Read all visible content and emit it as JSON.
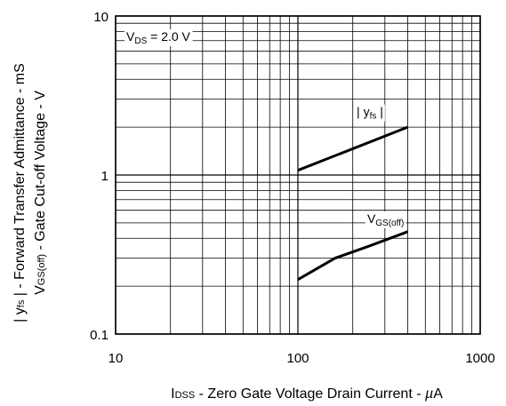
{
  "chart_data": {
    "type": "line",
    "xlabel": {
      "main": "I",
      "sub": "DSS",
      "rest": " - Zero Gate Voltage Drain Current - ",
      "unit_symbol": "µ",
      "unit_rest": "A"
    },
    "ylabel_line1": {
      "pre": "| y",
      "sub": "fs",
      "rest": " | - Forward Transfer Admittance - mS"
    },
    "ylabel_line2": {
      "pre": "V",
      "sub": "GS(off)",
      "rest": " - Gate Cut-off Voltage - V"
    },
    "x_scale": "log",
    "y_scale": "log",
    "xlim": [
      10,
      1000
    ],
    "ylim": [
      0.1,
      10
    ],
    "x_ticks": [
      {
        "value": 10,
        "label": "10"
      },
      {
        "value": 100,
        "label": "100"
      },
      {
        "value": 1000,
        "label": "1000"
      }
    ],
    "y_ticks": [
      {
        "value": 0.1,
        "label": "0.1"
      },
      {
        "value": 1,
        "label": "1"
      },
      {
        "value": 10,
        "label": "10"
      }
    ],
    "grid": true,
    "condition": {
      "pre": "V",
      "sub": "DS",
      "rest": " = 2.0 V"
    },
    "series": [
      {
        "name": "| yfs |",
        "label": {
          "pre": "| y",
          "sub": "fs",
          "rest": " |"
        },
        "x": [
          100,
          400
        ],
        "y": [
          1.07,
          2.0
        ]
      },
      {
        "name": "VGS(off)",
        "label": {
          "pre": "V",
          "sub": "GS(off)",
          "rest": ""
        },
        "x": [
          100,
          160,
          250,
          400
        ],
        "y": [
          0.22,
          0.3,
          0.36,
          0.44
        ]
      }
    ],
    "colors": {
      "line": "#000000",
      "grid": "#000000",
      "background": "#ffffff"
    }
  }
}
